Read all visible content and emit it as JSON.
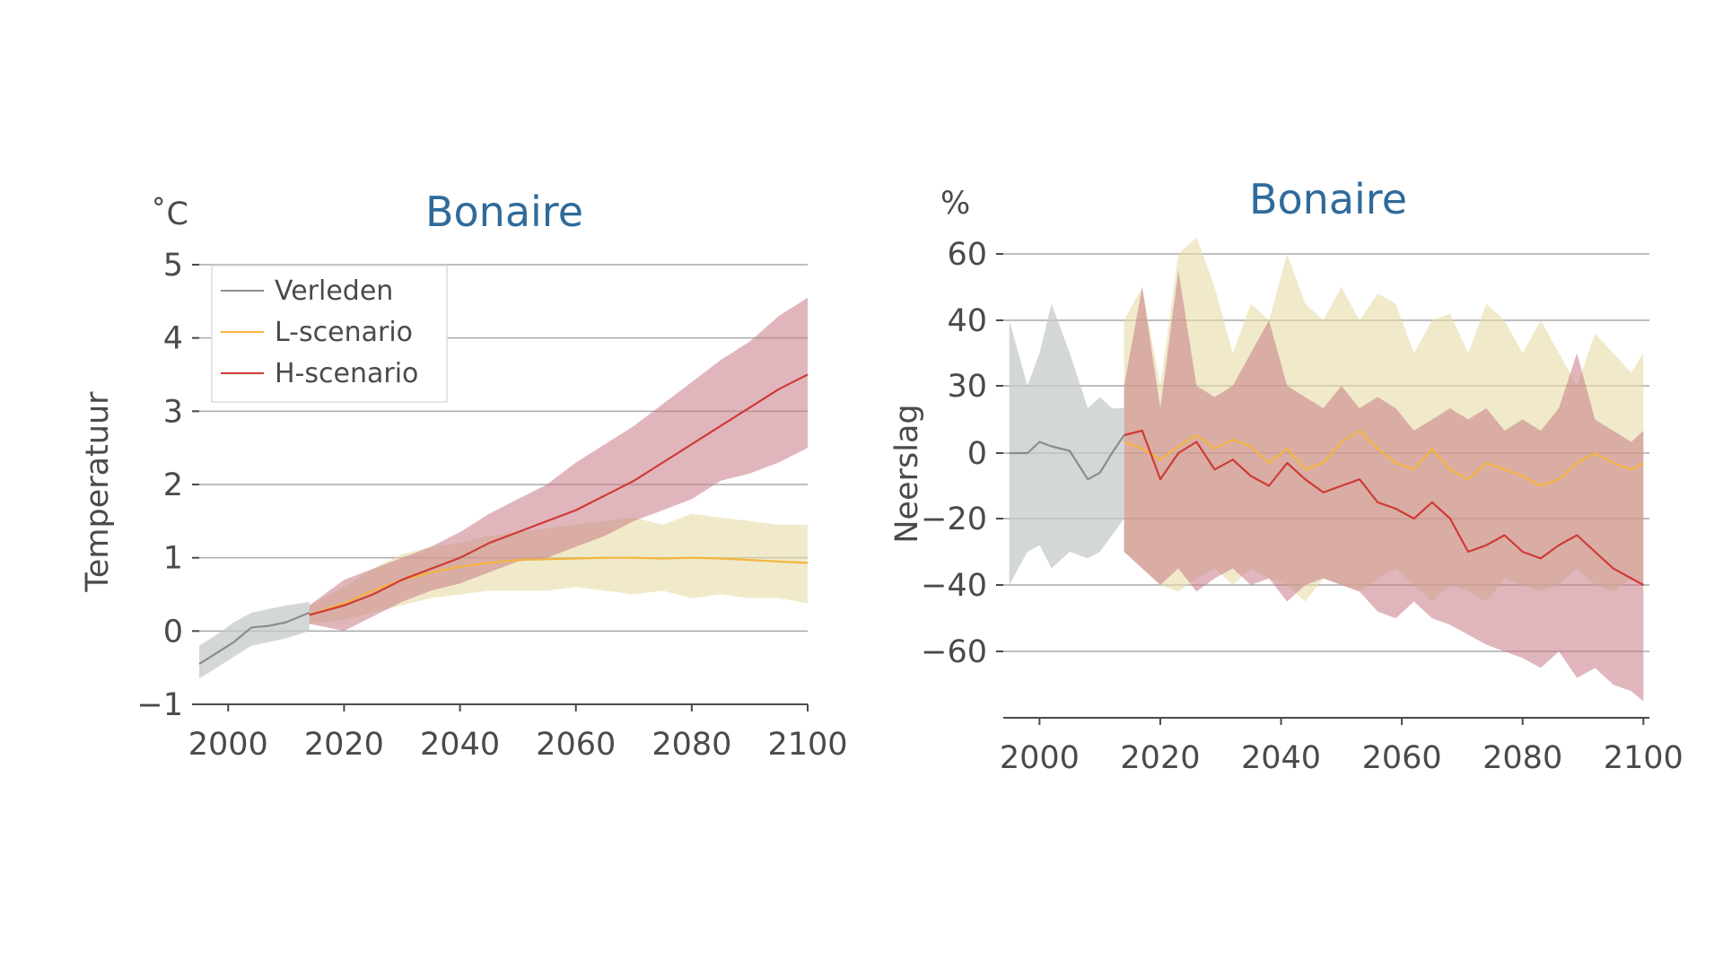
{
  "colors": {
    "verleden": "#8c8c8c",
    "verleden_band": "#c5cacb",
    "l_scenario": "#f4b53f",
    "l_band": "#e6dca6",
    "h_scenario": "#d03a37",
    "h_band": "#c77a85",
    "title": "#2f6a9a",
    "grid": "#a9a9a9"
  },
  "legend": {
    "items": [
      {
        "label": "Verleden",
        "color": "#8c8c8c"
      },
      {
        "label": "L-scenario",
        "color": "#f4b53f"
      },
      {
        "label": "H-scenario",
        "color": "#d03a37"
      }
    ],
    "placement": "top-left"
  },
  "chart_data": [
    {
      "type": "line",
      "title": "Bonaire",
      "unit": "˚C",
      "ylabel": "Temperatuur",
      "xlabel": "",
      "xlim": [
        1995,
        2100
      ],
      "ylim": [
        -1,
        5
      ],
      "xticks": [
        2000,
        2020,
        2040,
        2060,
        2080,
        2100
      ],
      "yticks": [
        -1,
        0,
        1,
        2,
        3,
        4,
        5
      ],
      "ytick_labels": [
        "−1",
        "0",
        "1",
        "2",
        "3",
        "4",
        "5"
      ],
      "grid": "horizontal",
      "series": [
        {
          "name": "Verleden",
          "x": [
            1995,
            1998,
            2001,
            2004,
            2007,
            2010,
            2014
          ],
          "y": [
            -0.45,
            -0.3,
            -0.15,
            0.05,
            0.07,
            0.12,
            0.25
          ],
          "lower": [
            -0.65,
            -0.5,
            -0.35,
            -0.2,
            -0.15,
            -0.1,
            0.0
          ],
          "upper": [
            -0.2,
            -0.05,
            0.12,
            0.25,
            0.3,
            0.35,
            0.4
          ]
        },
        {
          "name": "L-scenario",
          "x": [
            2014,
            2020,
            2025,
            2030,
            2035,
            2040,
            2045,
            2050,
            2055,
            2060,
            2065,
            2070,
            2075,
            2080,
            2085,
            2090,
            2095,
            2100
          ],
          "y": [
            0.22,
            0.38,
            0.55,
            0.7,
            0.8,
            0.88,
            0.93,
            0.97,
            0.98,
            0.99,
            1.0,
            1.0,
            0.99,
            1.0,
            0.99,
            0.97,
            0.95,
            0.93
          ],
          "lower": [
            0.1,
            0.15,
            0.25,
            0.35,
            0.45,
            0.5,
            0.55,
            0.55,
            0.55,
            0.6,
            0.55,
            0.5,
            0.55,
            0.45,
            0.5,
            0.45,
            0.45,
            0.38
          ],
          "upper": [
            0.35,
            0.6,
            0.85,
            1.05,
            1.15,
            1.2,
            1.3,
            1.35,
            1.4,
            1.45,
            1.5,
            1.55,
            1.45,
            1.6,
            1.55,
            1.5,
            1.45,
            1.45
          ]
        },
        {
          "name": "H-scenario",
          "x": [
            2014,
            2020,
            2025,
            2030,
            2035,
            2040,
            2045,
            2050,
            2055,
            2060,
            2065,
            2070,
            2075,
            2080,
            2085,
            2090,
            2095,
            2100
          ],
          "y": [
            0.22,
            0.35,
            0.5,
            0.7,
            0.85,
            1.0,
            1.2,
            1.35,
            1.5,
            1.65,
            1.85,
            2.05,
            2.3,
            2.55,
            2.8,
            3.05,
            3.3,
            3.5
          ],
          "lower": [
            0.1,
            0.0,
            0.2,
            0.4,
            0.55,
            0.65,
            0.8,
            0.95,
            1.0,
            1.15,
            1.3,
            1.5,
            1.65,
            1.8,
            2.05,
            2.15,
            2.3,
            2.5
          ],
          "upper": [
            0.35,
            0.7,
            0.85,
            1.0,
            1.15,
            1.35,
            1.6,
            1.8,
            2.0,
            2.3,
            2.55,
            2.8,
            3.1,
            3.4,
            3.7,
            3.95,
            4.3,
            4.55
          ]
        }
      ]
    },
    {
      "type": "line",
      "title": "Bonaire",
      "unit": "%",
      "ylabel": "Neerslag",
      "xlabel": "",
      "xlim": [
        1994,
        2101
      ],
      "ylim": [
        -80,
        65
      ],
      "xticks": [
        2000,
        2020,
        2040,
        2060,
        2080,
        2100
      ],
      "yticks": [
        -60,
        -40,
        -20,
        0,
        30,
        40,
        60
      ],
      "ytick_labels": [
        "−60",
        "−40",
        "−20",
        "0",
        "30",
        "40",
        "60"
      ],
      "grid": "horizontal",
      "series": [
        {
          "name": "Verleden",
          "x": [
            1995,
            1998,
            2000,
            2002,
            2005,
            2008,
            2010,
            2012,
            2014
          ],
          "y": [
            0,
            0,
            5,
            3,
            1,
            -8,
            -6,
            0,
            8
          ],
          "lower": [
            -40,
            -30,
            -28,
            -35,
            -30,
            -32,
            -30,
            -25,
            -20
          ],
          "upper": [
            40,
            30,
            35,
            45,
            35,
            20,
            25,
            20,
            20
          ]
        },
        {
          "name": "L-scenario",
          "x": [
            2014,
            2017,
            2020,
            2023,
            2026,
            2029,
            2032,
            2035,
            2038,
            2041,
            2044,
            2047,
            2050,
            2053,
            2056,
            2059,
            2062,
            2065,
            2068,
            2071,
            2074,
            2077,
            2080,
            2083,
            2086,
            2089,
            2092,
            2095,
            2098,
            2100
          ],
          "y": [
            5,
            2,
            -2,
            3,
            8,
            2,
            6,
            3,
            -3,
            2,
            -5,
            -3,
            5,
            10,
            2,
            -3,
            -5,
            2,
            -5,
            -8,
            -3,
            -5,
            -7,
            -10,
            -8,
            -3,
            0,
            -3,
            -5,
            -3
          ],
          "lower": [
            -30,
            -35,
            -40,
            -42,
            -38,
            -35,
            -40,
            -35,
            -38,
            -40,
            -45,
            -38,
            -40,
            -42,
            -38,
            -35,
            -40,
            -45,
            -40,
            -42,
            -45,
            -38,
            -40,
            -42,
            -40,
            -35,
            -40,
            -42,
            -38,
            -40
          ],
          "upper": [
            40,
            50,
            30,
            60,
            65,
            50,
            35,
            45,
            40,
            60,
            45,
            40,
            50,
            40,
            48,
            45,
            35,
            40,
            42,
            35,
            45,
            40,
            35,
            40,
            35,
            30,
            38,
            35,
            32,
            35
          ]
        },
        {
          "name": "H-scenario",
          "x": [
            2014,
            2017,
            2020,
            2023,
            2026,
            2029,
            2032,
            2035,
            2038,
            2041,
            2044,
            2047,
            2050,
            2053,
            2056,
            2059,
            2062,
            2065,
            2068,
            2071,
            2074,
            2077,
            2080,
            2083,
            2086,
            2089,
            2092,
            2095,
            2098,
            2100
          ],
          "y": [
            8,
            10,
            -8,
            0,
            5,
            -5,
            -2,
            -7,
            -10,
            -3,
            -8,
            -12,
            -10,
            -8,
            -15,
            -17,
            -20,
            -15,
            -20,
            -30,
            -28,
            -25,
            -30,
            -32,
            -28,
            -25,
            -30,
            -35,
            -38,
            -40
          ],
          "lower": [
            -30,
            -35,
            -40,
            -35,
            -42,
            -38,
            -35,
            -40,
            -38,
            -45,
            -40,
            -38,
            -40,
            -42,
            -48,
            -50,
            -45,
            -50,
            -52,
            -55,
            -58,
            -60,
            -62,
            -65,
            -60,
            -68,
            -65,
            -70,
            -72,
            -75
          ],
          "upper": [
            30,
            50,
            20,
            55,
            30,
            25,
            30,
            35,
            40,
            30,
            25,
            20,
            30,
            20,
            25,
            20,
            10,
            15,
            20,
            15,
            20,
            10,
            15,
            10,
            20,
            35,
            15,
            10,
            5,
            10
          ]
        }
      ]
    }
  ]
}
